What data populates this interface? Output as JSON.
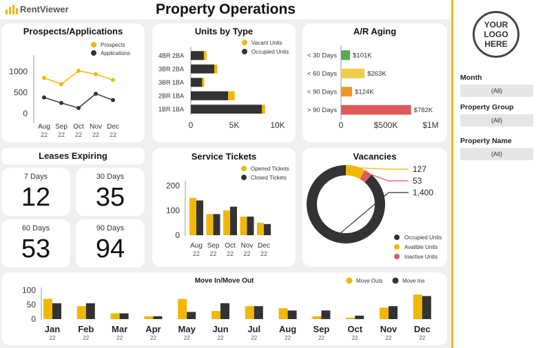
{
  "app": {
    "brand": "RentViewer",
    "title": "Property Operations",
    "logo_text": [
      "YOUR",
      "LOGO",
      "HERE"
    ]
  },
  "colors": {
    "yellow": "#f2b705",
    "dark": "#333333",
    "green": "#5aa84f",
    "light_yellow": "#f0ce4a",
    "orange": "#f0962a",
    "red": "#e05a5a"
  },
  "filters": [
    {
      "label": "Month",
      "value": "(All)"
    },
    {
      "label": "Property Group",
      "value": "(All)"
    },
    {
      "label": "Property Name",
      "value": "(All)"
    }
  ],
  "leases": {
    "title": "Leases Expiring",
    "items": [
      {
        "label": "7 Days",
        "value": "12"
      },
      {
        "label": "30 Days",
        "value": "35"
      },
      {
        "label": "60 Days",
        "value": "53"
      },
      {
        "label": "90 Days",
        "value": "94"
      }
    ]
  },
  "chart_data": [
    {
      "id": "prospects",
      "type": "line",
      "title": "Prospects/Applications",
      "categories": [
        "Aug|22",
        "Sep|22",
        "Oct|22",
        "Nov|22",
        "Dec|22"
      ],
      "series": [
        {
          "name": "Prospects",
          "color": "#f2b705",
          "values": [
            850,
            700,
            1020,
            940,
            800
          ]
        },
        {
          "name": "Applications",
          "color": "#333333",
          "values": [
            380,
            250,
            130,
            470,
            320
          ]
        }
      ],
      "yticks": [
        0,
        500,
        1000
      ],
      "ytick_labels": [
        "0",
        "500",
        "1000"
      ],
      "ylim": [
        -200,
        1250
      ]
    },
    {
      "id": "units",
      "type": "bar",
      "orientation": "horizontal",
      "stacked": true,
      "title": "Units by Type",
      "categories": [
        "4BR 2BA",
        "3BR 2BA",
        "3BR 1BA",
        "2BR 1BA",
        "1BR 1BA"
      ],
      "series": [
        {
          "name": "Occupied Units",
          "color": "#333333",
          "values": [
            1500,
            2700,
            1300,
            4300,
            8200
          ]
        },
        {
          "name": "Vacant Units",
          "color": "#f2b705",
          "values": [
            300,
            350,
            250,
            750,
            350
          ]
        }
      ],
      "xticks": [
        0,
        5000,
        10000
      ],
      "xtick_labels": [
        "0",
        "5K",
        "10K"
      ],
      "xlim": [
        0,
        10000
      ]
    },
    {
      "id": "ar",
      "type": "bar",
      "orientation": "horizontal",
      "title": "A/R Aging",
      "categories": [
        "< 30 Days",
        "< 60 Days",
        "< 90 Days",
        "> 90 Days"
      ],
      "values": [
        101,
        263,
        124,
        782
      ],
      "value_labels": [
        "$101K",
        "$263K",
        "$124K",
        "$782K"
      ],
      "colors": [
        "#5aa84f",
        "#f0ce4a",
        "#f0962a",
        "#e05a5a"
      ],
      "xticks": [
        0,
        500,
        1000
      ],
      "xtick_labels": [
        "0",
        "$500K",
        "$1M"
      ],
      "xlim": [
        0,
        1000
      ]
    },
    {
      "id": "tickets",
      "type": "bar",
      "title": "Service Tickets",
      "categories": [
        "Aug|22",
        "Sep|22",
        "Oct|22",
        "Nov|22",
        "Dec|22"
      ],
      "series": [
        {
          "name": "Opened Tickets",
          "color": "#f2b705",
          "values": [
            150,
            85,
            100,
            75,
            50
          ]
        },
        {
          "name": "Closed Tickets",
          "color": "#333333",
          "values": [
            140,
            85,
            115,
            75,
            45
          ]
        }
      ],
      "yticks": [
        0,
        100,
        200
      ],
      "ytick_labels": [
        "0",
        "100",
        "200"
      ],
      "ylim": [
        0,
        230
      ]
    },
    {
      "id": "vacancies",
      "type": "pie",
      "donut": true,
      "title": "Vacancies",
      "labels": [
        "Occupied Units",
        "Available Units",
        "Inactive Units"
      ],
      "legend_labels": [
        "Occupied Units",
        "Avalible Units",
        "Inactive Units"
      ],
      "values": [
        1400,
        127,
        53
      ],
      "value_labels": [
        "1,400",
        "127",
        "53"
      ],
      "colors": [
        "#333333",
        "#f2b705",
        "#e05a5a"
      ]
    },
    {
      "id": "moves",
      "type": "bar",
      "title": "Move In/Move Out",
      "categories": [
        "Jan",
        "Feb",
        "Mar",
        "Apr",
        "May",
        "Jun",
        "Jul",
        "Aug",
        "Sep",
        "Oct",
        "Nov",
        "Dec"
      ],
      "year_label": "22",
      "series": [
        {
          "name": "Move Outs",
          "color": "#f2b705",
          "values": [
            70,
            45,
            20,
            10,
            70,
            28,
            45,
            38,
            10,
            5,
            40,
            85
          ]
        },
        {
          "name": "Move Ins",
          "color": "#333333",
          "values": [
            55,
            55,
            20,
            10,
            25,
            55,
            45,
            30,
            30,
            12,
            45,
            80
          ]
        }
      ],
      "yticks": [
        0,
        50,
        100
      ],
      "ytick_labels": [
        "0",
        "50",
        "100"
      ],
      "ylim": [
        0,
        105
      ]
    }
  ]
}
